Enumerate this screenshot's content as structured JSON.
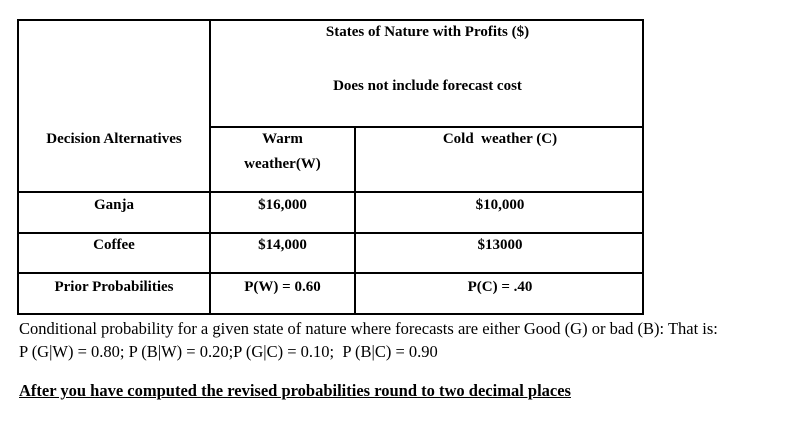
{
  "table": {
    "header_title": "States of Nature with Profits ($)",
    "header_subtitle": "Does not include forecast cost",
    "decision_label": "Decision Alternatives",
    "states": [
      {
        "line1": "Warm",
        "line2": "weather(W)"
      },
      {
        "label": "Cold  weather (C)"
      }
    ],
    "rows": [
      {
        "alternative": "Ganja",
        "warm": "$16,000",
        "cold": "$10,000"
      },
      {
        "alternative": "Coffee",
        "warm": "$14,000",
        "cold": "$13000"
      }
    ],
    "prior": {
      "label": "Prior Probabilities",
      "warm": "P(W) = 0.60",
      "cold": "P(C) = .40"
    }
  },
  "notes": {
    "line1": "Conditional probability for a given state of nature where forecasts are either Good (G) or bad (B): That is:",
    "line2": "P (G|W) = 0.80; P (B|W) = 0.20;P (G|C) = 0.10;  P (B|C) = 0.90"
  },
  "instruction": "After you have computed the revised probabilities round to two decimal places"
}
